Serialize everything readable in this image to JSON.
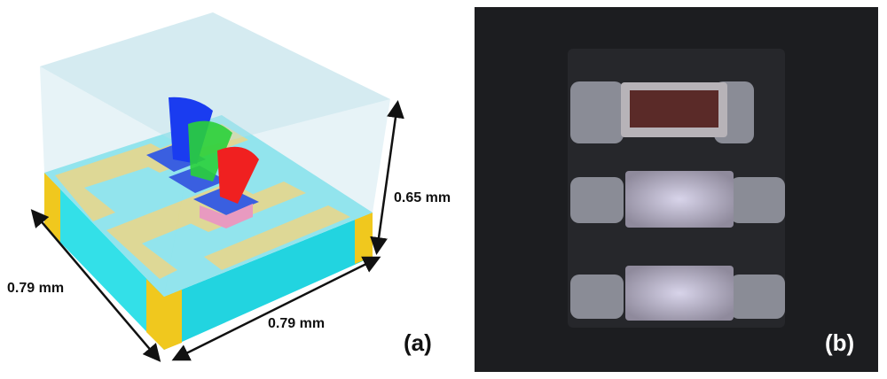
{
  "dimensions": {
    "height": "0.65 mm",
    "depth": "0.79 mm",
    "width": "0.79 mm"
  },
  "panels": {
    "a": "(a)",
    "b": "(b)"
  }
}
